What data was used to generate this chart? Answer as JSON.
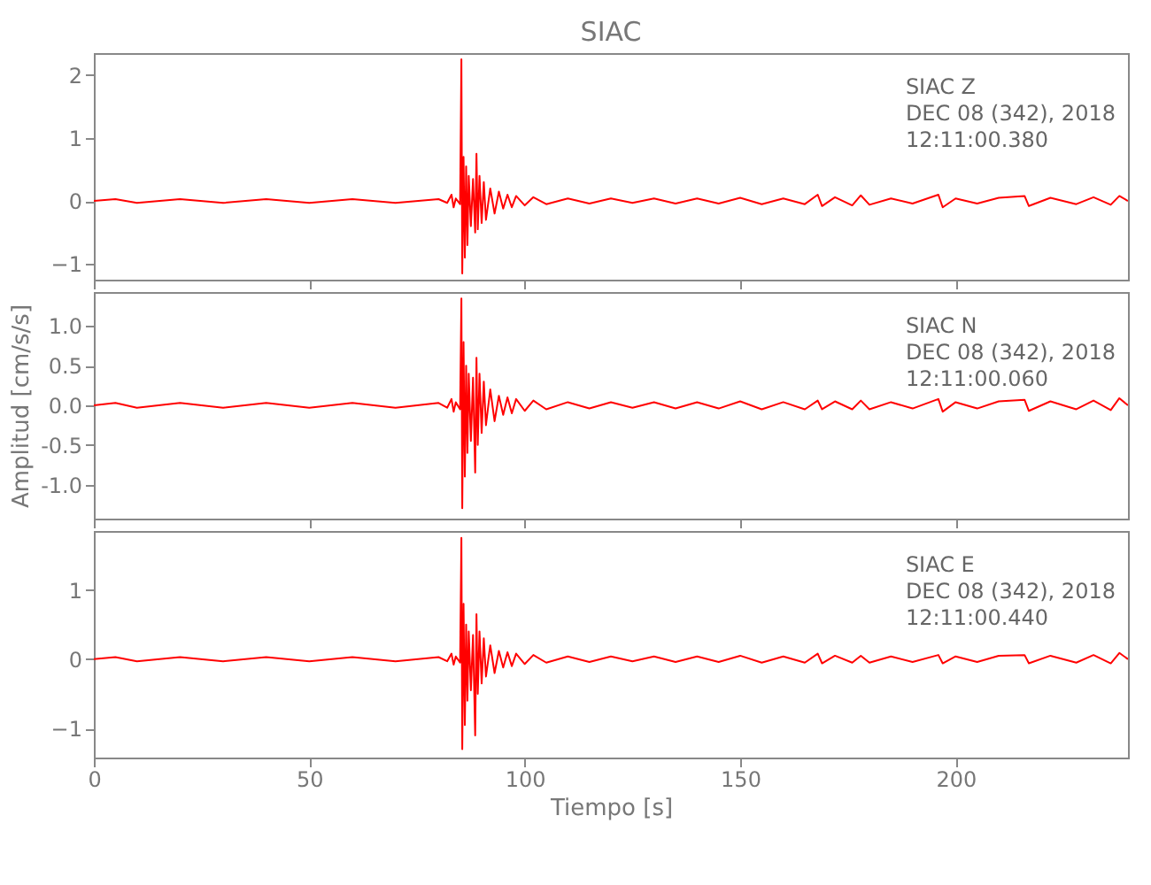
{
  "chart_data": [
    {
      "type": "line",
      "title": "SIAC",
      "annotations": [
        "SIAC   Z",
        "DEC 08 (342), 2018",
        "12:11:00.380"
      ],
      "x": [
        0,
        5,
        10,
        20,
        30,
        40,
        50,
        60,
        70,
        80,
        82,
        83,
        83.5,
        84,
        85,
        85.3,
        85.5,
        85.8,
        86.1,
        86.4,
        86.7,
        87,
        87.5,
        88,
        88.5,
        88.8,
        89.1,
        89.5,
        90,
        90.5,
        91,
        92,
        93,
        94,
        95,
        96,
        97,
        98,
        100,
        102,
        105,
        110,
        115,
        120,
        125,
        130,
        135,
        140,
        145,
        150,
        155,
        160,
        165,
        168,
        169,
        172,
        176,
        178,
        180,
        185,
        190,
        196,
        197,
        200,
        205,
        210,
        216,
        217,
        222,
        228,
        232,
        236,
        238,
        240
      ],
      "series": [
        {
          "color": "#ff0000",
          "values": [
            0,
            0.03,
            -0.03,
            0.03,
            -0.03,
            0.03,
            -0.03,
            0.03,
            -0.03,
            0.03,
            -0.03,
            0.1,
            -0.1,
            0.04,
            -0.05,
            2.25,
            -1.15,
            0.7,
            -0.9,
            0.55,
            -0.7,
            0.4,
            -0.4,
            0.35,
            -0.5,
            0.75,
            -0.45,
            0.4,
            -0.35,
            0.3,
            -0.3,
            0.2,
            -0.2,
            0.15,
            -0.12,
            0.1,
            -0.1,
            0.08,
            -0.07,
            0.06,
            -0.05,
            0.04,
            -0.04,
            0.04,
            -0.03,
            0.04,
            -0.04,
            0.04,
            -0.04,
            0.05,
            -0.05,
            0.04,
            -0.05,
            0.1,
            -0.08,
            0.06,
            -0.07,
            0.09,
            -0.06,
            0.04,
            -0.04,
            0.1,
            -0.1,
            0.04,
            -0.04,
            0.05,
            0.08,
            -0.08,
            0.05,
            -0.05,
            0.06,
            -0.06,
            0.08,
            0
          ]
        }
      ],
      "xlim": [
        0,
        240
      ],
      "xticks": [
        0,
        50,
        100,
        150,
        200
      ],
      "ylim": [
        -1.25,
        2.35
      ],
      "yticks": [
        -1,
        0,
        1,
        2
      ],
      "tick_labels": "y"
    },
    {
      "type": "line",
      "ylabel": "Amplitud [cm/s/s]",
      "annotations": [
        "SIAC   N",
        "DEC 08 (342), 2018",
        "12:11:00.060"
      ],
      "x": [
        0,
        5,
        10,
        20,
        30,
        40,
        50,
        60,
        70,
        80,
        82,
        83,
        83.5,
        84,
        85,
        85.3,
        85.5,
        85.8,
        86.1,
        86.4,
        86.7,
        87,
        87.5,
        88,
        88.5,
        88.8,
        89.1,
        89.5,
        90,
        90.5,
        91,
        92,
        93,
        94,
        95,
        96,
        97,
        98,
        100,
        102,
        105,
        110,
        115,
        120,
        125,
        130,
        135,
        140,
        145,
        150,
        155,
        160,
        165,
        168,
        169,
        172,
        176,
        178,
        180,
        185,
        190,
        196,
        197,
        200,
        205,
        210,
        216,
        217,
        222,
        228,
        232,
        236,
        238,
        240
      ],
      "series": [
        {
          "color": "#ff0000",
          "values": [
            0,
            0.03,
            -0.03,
            0.03,
            -0.03,
            0.03,
            -0.03,
            0.03,
            -0.03,
            0.03,
            -0.03,
            0.08,
            -0.08,
            0.04,
            -0.05,
            1.35,
            -1.3,
            0.8,
            -0.9,
            0.5,
            -0.6,
            0.4,
            -0.45,
            0.35,
            -0.85,
            0.6,
            -0.5,
            0.4,
            -0.35,
            0.3,
            -0.25,
            0.2,
            -0.2,
            0.12,
            -0.12,
            0.1,
            -0.1,
            0.08,
            -0.07,
            0.06,
            -0.05,
            0.04,
            -0.04,
            0.04,
            -0.03,
            0.04,
            -0.04,
            0.04,
            -0.04,
            0.05,
            -0.05,
            0.04,
            -0.05,
            0.06,
            -0.05,
            0.05,
            -0.05,
            0.06,
            -0.05,
            0.04,
            -0.04,
            0.08,
            -0.08,
            0.04,
            -0.04,
            0.05,
            0.07,
            -0.07,
            0.05,
            -0.05,
            0.06,
            -0.06,
            0.09,
            0
          ]
        }
      ],
      "xlim": [
        0,
        240
      ],
      "xticks": [
        0,
        50,
        100,
        150,
        200
      ],
      "ylim": [
        -1.43,
        1.43
      ],
      "yticks": [
        {
          "value": -1,
          "label": "-1.0"
        },
        {
          "value": -0.5,
          "label": "-0.5"
        },
        {
          "value": 0,
          "label": "0.0"
        },
        {
          "value": 0.5,
          "label": "0.5"
        },
        {
          "value": 1,
          "label": "1.0"
        }
      ],
      "tick_labels": "y"
    },
    {
      "type": "line",
      "xlabel": "Tiempo [s]",
      "annotations": [
        "SIAC   E",
        "DEC 08 (342), 2018",
        "12:11:00.440"
      ],
      "x": [
        0,
        5,
        10,
        20,
        30,
        40,
        50,
        60,
        70,
        80,
        82,
        83,
        83.5,
        84,
        85,
        85.3,
        85.5,
        85.8,
        86.1,
        86.4,
        86.7,
        87,
        87.5,
        88,
        88.5,
        88.8,
        89.1,
        89.5,
        90,
        90.5,
        91,
        92,
        93,
        94,
        95,
        96,
        97,
        98,
        100,
        102,
        105,
        110,
        115,
        120,
        125,
        130,
        135,
        140,
        145,
        150,
        155,
        160,
        165,
        168,
        169,
        172,
        176,
        178,
        180,
        185,
        190,
        196,
        197,
        200,
        205,
        210,
        216,
        217,
        222,
        228,
        232,
        236,
        238,
        240
      ],
      "series": [
        {
          "color": "#ff0000",
          "values": [
            0,
            0.03,
            -0.03,
            0.03,
            -0.03,
            0.03,
            -0.03,
            0.03,
            -0.03,
            0.03,
            -0.03,
            0.08,
            -0.08,
            0.04,
            -0.05,
            1.75,
            -1.3,
            0.8,
            -0.95,
            0.5,
            -0.6,
            0.4,
            -0.45,
            0.35,
            -1.1,
            0.65,
            -0.5,
            0.4,
            -0.35,
            0.3,
            -0.25,
            0.2,
            -0.2,
            0.12,
            -0.12,
            0.1,
            -0.1,
            0.08,
            -0.07,
            0.06,
            -0.05,
            0.04,
            -0.04,
            0.04,
            -0.03,
            0.04,
            -0.04,
            0.04,
            -0.04,
            0.05,
            -0.05,
            0.04,
            -0.05,
            0.08,
            -0.06,
            0.05,
            -0.05,
            0.05,
            -0.05,
            0.04,
            -0.04,
            0.06,
            -0.06,
            0.04,
            -0.04,
            0.05,
            0.06,
            -0.06,
            0.05,
            -0.05,
            0.06,
            -0.06,
            0.09,
            0
          ]
        }
      ],
      "xlim": [
        0,
        240
      ],
      "xticks": [
        0,
        50,
        100,
        150,
        200
      ],
      "ylim": [
        -1.42,
        1.85
      ],
      "yticks": [
        -1,
        0,
        1
      ]
    }
  ]
}
